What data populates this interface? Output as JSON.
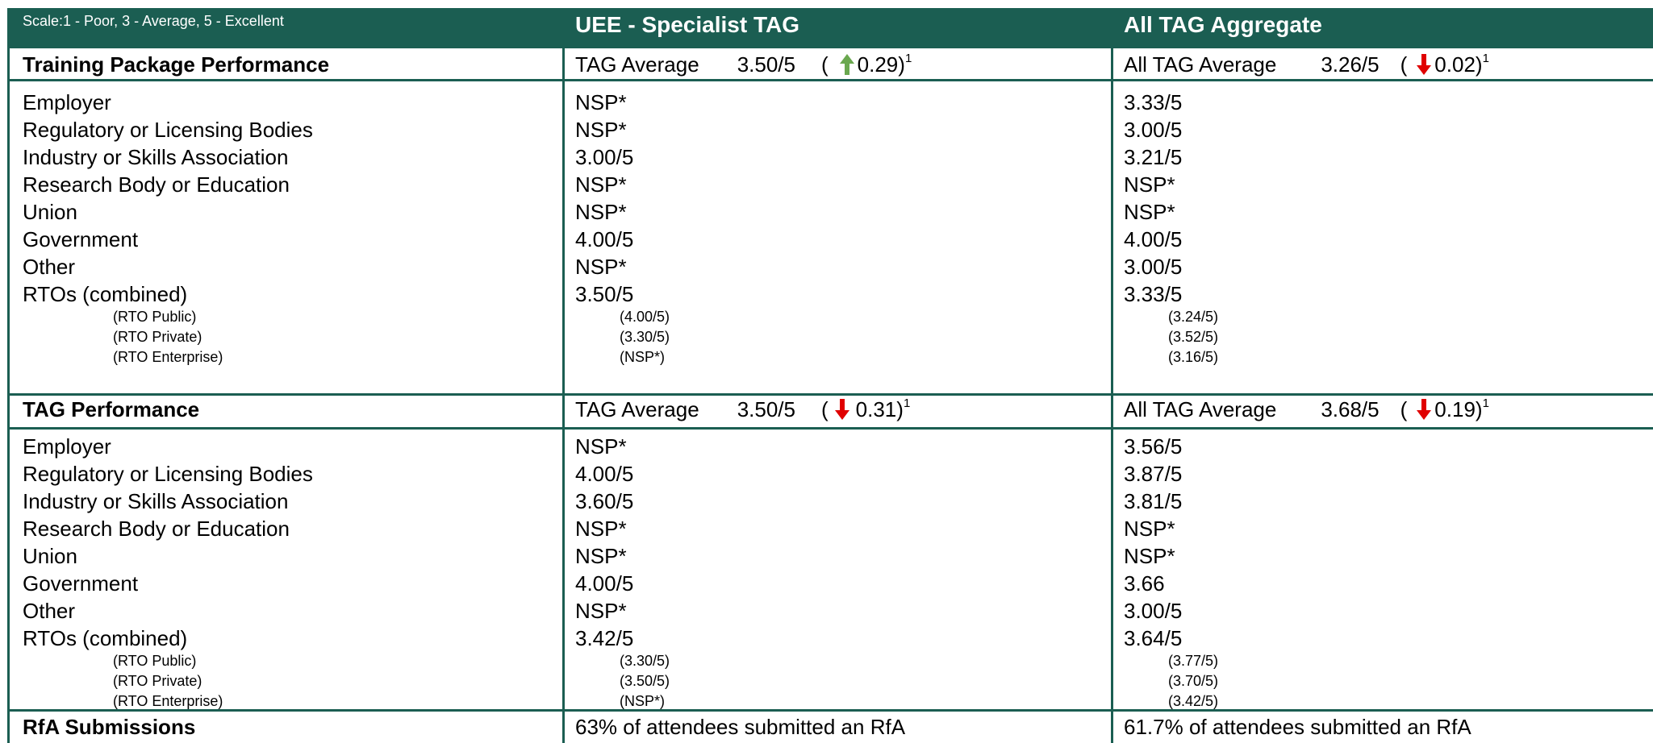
{
  "header": {
    "scale": "Scale:1 - Poor, 3 - Average, 5 - Excellent",
    "uee": "UEE - Specialist TAG",
    "all": "All TAG Aggregate"
  },
  "sections": [
    {
      "title": "Training Package Performance",
      "uee": {
        "label": "TAG Average",
        "value": "3.50/5",
        "open": "(",
        "change": "0.29",
        "close": ")",
        "note": "1"
      },
      "all": {
        "label": "All TAG Average",
        "value": "3.26/5",
        "open": "(",
        "change": "0.02",
        "close": ")",
        "note": "1"
      },
      "rows": [
        {
          "label": "Employer",
          "uee": "NSP*",
          "all": "3.33/5"
        },
        {
          "label": "Regulatory or Licensing Bodies",
          "uee": "NSP*",
          "all": "3.00/5"
        },
        {
          "label": "Industry or Skills Association",
          "uee": "3.00/5",
          "all": "3.21/5"
        },
        {
          "label": "Research Body or Education",
          "uee": "NSP*",
          "all": "NSP*"
        },
        {
          "label": "Union",
          "uee": "NSP*",
          "all": "NSP*"
        },
        {
          "label": "Government",
          "uee": "4.00/5",
          "all": "4.00/5"
        },
        {
          "label": "Other",
          "uee": "NSP*",
          "all": "3.00/5"
        },
        {
          "label": "RTOs (combined)",
          "uee": "3.50/5",
          "all": "3.33/5"
        }
      ],
      "subrows": [
        {
          "label": "(RTO Public)",
          "uee": "(4.00/5)",
          "all": "(3.24/5)"
        },
        {
          "label": "(RTO Private)",
          "uee": "(3.30/5)",
          "all": "(3.52/5)"
        },
        {
          "label": "(RTO Enterprise)",
          "uee": "(NSP*)",
          "all": "(3.16/5)"
        }
      ]
    },
    {
      "title": "TAG Performance",
      "uee": {
        "label": "TAG Average",
        "value": "3.50/5",
        "open": "(",
        "change": "0.31",
        "close": ")",
        "note": "1"
      },
      "all": {
        "label": "All TAG Average",
        "value": "3.68/5",
        "open": "(",
        "change": "0.19",
        "close": ")",
        "note": "1"
      },
      "rows": [
        {
          "label": "Employer",
          "uee": "NSP*",
          "all": "3.56/5"
        },
        {
          "label": "Regulatory or Licensing Bodies",
          "uee": "4.00/5",
          "all": "3.87/5"
        },
        {
          "label": "Industry or Skills Association",
          "uee": "3.60/5",
          "all": "3.81/5"
        },
        {
          "label": "Research Body or Education",
          "uee": "NSP*",
          "all": "NSP*"
        },
        {
          "label": "Union",
          "uee": "NSP*",
          "all": "NSP*"
        },
        {
          "label": "Government",
          "uee": "4.00/5",
          "all": "3.66"
        },
        {
          "label": "Other",
          "uee": "NSP*",
          "all": "3.00/5"
        },
        {
          "label": "RTOs (combined)",
          "uee": "3.42/5",
          "all": "3.64/5"
        }
      ],
      "subrows": [
        {
          "label": "(RTO Public)",
          "uee": "(3.30/5)",
          "all": "(3.77/5)"
        },
        {
          "label": "(RTO Private)",
          "uee": "(3.50/5)",
          "all": "(3.70/5)"
        },
        {
          "label": "(RTO Enterprise)",
          "uee": "(NSP*)",
          "all": "(3.42/5)"
        }
      ]
    }
  ],
  "rfa": {
    "title": "RfA Submissions",
    "uee": "63% of attendees submitted an RfA",
    "all": "61.7% of attendees submitted an RfA"
  }
}
